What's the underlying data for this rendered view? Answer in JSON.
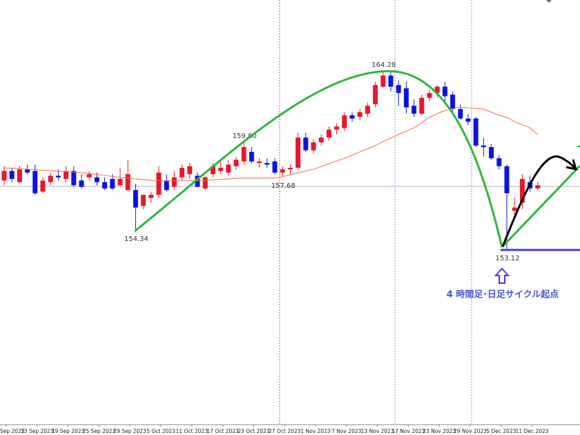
{
  "chart_data": {
    "type": "candlestick",
    "categories": [
      "Sep 2023",
      null,
      null,
      null,
      "13 Sep 2023",
      null,
      null,
      null,
      "19 Sep 2023",
      null,
      null,
      null,
      "25 Sep 2023",
      null,
      null,
      null,
      "29 Sep 2023",
      null,
      null,
      null,
      "5 Oct 2023",
      null,
      null,
      null,
      "11 Oct 2023",
      null,
      null,
      null,
      "17 Oct 2023",
      null,
      null,
      null,
      "23 Oct 2023",
      null,
      null,
      null,
      "27 Oct 2023",
      null,
      null,
      null,
      "1 Nov 2023",
      null,
      null,
      null,
      "7 Nov 2023",
      null,
      null,
      null,
      "13 Nov 2023",
      null,
      null,
      null,
      "17 Nov 2023",
      null,
      null,
      null,
      "23 Nov 2023",
      null,
      null,
      null,
      "29 Nov 2023",
      null,
      null,
      null,
      "5 Dec 2023",
      null,
      null,
      null,
      "11 Dec 2023",
      null
    ],
    "ohlc": [
      [
        157.4,
        158.3,
        157.1,
        158.0
      ],
      [
        158.0,
        158.2,
        157.3,
        157.5
      ],
      [
        157.3,
        158.3,
        157.2,
        158.1
      ],
      [
        158.1,
        158.4,
        157.8,
        157.9
      ],
      [
        158.0,
        158.4,
        156.5,
        156.6
      ],
      [
        156.7,
        157.6,
        156.6,
        157.4
      ],
      [
        157.3,
        157.9,
        157.1,
        157.7
      ],
      [
        157.7,
        158.1,
        157.4,
        157.6
      ],
      [
        157.5,
        158.3,
        157.3,
        158.0
      ],
      [
        158.0,
        158.3,
        157.0,
        157.1
      ],
      [
        157.4,
        157.8,
        156.9,
        157.0
      ],
      [
        157.6,
        158.0,
        157.4,
        157.8
      ],
      [
        157.6,
        157.9,
        157.1,
        157.3
      ],
      [
        157.3,
        157.6,
        156.8,
        156.9
      ],
      [
        157.5,
        157.8,
        156.8,
        156.9
      ],
      [
        157.1,
        158.2,
        157.0,
        157.5
      ],
      [
        156.8,
        158.7,
        156.7,
        157.8
      ],
      [
        156.8,
        157.2,
        154.34,
        155.7
      ],
      [
        155.8,
        156.5,
        155.6,
        156.5
      ],
      [
        156.3,
        156.7,
        156.0,
        156.5
      ],
      [
        156.5,
        158.3,
        156.3,
        157.9
      ],
      [
        157.4,
        157.8,
        156.7,
        156.8
      ],
      [
        157.0,
        158.0,
        156.8,
        157.6
      ],
      [
        157.6,
        158.4,
        157.4,
        158.2
      ],
      [
        157.8,
        158.5,
        157.5,
        158.3
      ],
      [
        157.7,
        157.9,
        157.0,
        157.0
      ],
      [
        156.9,
        157.7,
        156.8,
        157.6
      ],
      [
        157.8,
        158.5,
        157.6,
        158.3
      ],
      [
        158.0,
        158.6,
        157.8,
        158.2
      ],
      [
        157.9,
        158.7,
        157.7,
        158.4
      ],
      [
        158.3,
        158.9,
        158.1,
        158.7
      ],
      [
        158.6,
        159.8,
        158.4,
        159.5
      ],
      [
        159.2,
        159.5,
        158.5,
        158.6
      ],
      [
        158.5,
        158.8,
        158.2,
        158.6
      ],
      [
        158.5,
        158.8,
        158.2,
        158.4
      ],
      [
        158.6,
        158.8,
        157.8,
        157.9
      ],
      [
        157.9,
        158.3,
        157.68,
        158.1
      ],
      [
        158.1,
        158.4,
        157.8,
        158.2
      ],
      [
        158.2,
        160.4,
        158.1,
        160.1
      ],
      [
        160.1,
        160.4,
        159.2,
        159.3
      ],
      [
        159.3,
        160.0,
        159.1,
        159.8
      ],
      [
        159.8,
        160.3,
        159.6,
        160.1
      ],
      [
        160.1,
        160.8,
        159.9,
        160.6
      ],
      [
        160.6,
        161.0,
        160.3,
        160.8
      ],
      [
        160.7,
        161.7,
        160.5,
        161.5
      ],
      [
        161.5,
        161.7,
        161.1,
        161.3
      ],
      [
        161.4,
        161.9,
        161.2,
        161.7
      ],
      [
        161.6,
        162.3,
        161.4,
        162.1
      ],
      [
        162.2,
        163.6,
        162.0,
        163.4
      ],
      [
        163.3,
        164.28,
        163.2,
        164.0
      ],
      [
        164.0,
        164.2,
        163.0,
        163.3
      ],
      [
        163.4,
        163.7,
        162.1,
        162.9
      ],
      [
        163.2,
        163.6,
        161.6,
        162.0
      ],
      [
        162.1,
        162.5,
        161.4,
        161.6
      ],
      [
        161.6,
        162.8,
        161.5,
        162.6
      ],
      [
        162.6,
        163.1,
        162.4,
        162.9
      ],
      [
        162.9,
        163.4,
        162.6,
        163.3
      ],
      [
        163.3,
        163.6,
        162.4,
        162.7
      ],
      [
        162.8,
        163.0,
        161.7,
        161.9
      ],
      [
        161.9,
        162.2,
        161.2,
        161.3
      ],
      [
        161.3,
        161.6,
        160.9,
        161.1
      ],
      [
        161.3,
        161.4,
        159.5,
        159.6
      ],
      [
        159.6,
        160.1,
        158.9,
        159.5
      ],
      [
        159.5,
        159.7,
        158.7,
        158.8
      ],
      [
        158.8,
        159.0,
        158.1,
        158.3
      ],
      [
        158.3,
        158.4,
        153.12,
        156.6
      ],
      [
        155.5,
        156.3,
        155.0,
        155.7
      ],
      [
        156.0,
        157.8,
        155.6,
        157.5
      ],
      [
        157.3,
        157.7,
        156.7,
        156.9
      ],
      [
        156.9,
        157.3,
        156.8,
        157.1
      ]
    ],
    "up_color": "#e8172d",
    "down_color": "#0d14e0",
    "ma": {
      "color": "#f2703f",
      "values": [
        158.2,
        158.17,
        158.14,
        158.11,
        158.08,
        158.05,
        158.02,
        157.99,
        157.96,
        157.93,
        157.9,
        157.84,
        157.78,
        157.72,
        157.66,
        157.6,
        157.55,
        157.5,
        157.46,
        157.42,
        157.38,
        157.38,
        157.38,
        157.38,
        157.38,
        157.38,
        157.41,
        157.44,
        157.47,
        157.5,
        157.55,
        157.55,
        157.55,
        157.55,
        157.55,
        157.55,
        157.64,
        157.76,
        157.88,
        158.0,
        158.11,
        158.28,
        158.46,
        158.63,
        158.8,
        158.98,
        159.2,
        159.4,
        159.6,
        159.85,
        160.07,
        160.3,
        160.5,
        160.72,
        161.05,
        161.37,
        161.6,
        161.81,
        161.92,
        162.02,
        161.98,
        161.94,
        161.89,
        161.7,
        161.5,
        161.37,
        161.1,
        160.9,
        160.72,
        160.29
      ]
    },
    "price_labels": [
      154.34,
      {
        "value": 159.8,
        "label": "159.80"
      },
      164.28,
      157.68,
      153.12
    ],
    "hline": 157.03,
    "ylim": [
      142.05,
      168.75
    ],
    "annotation": "4 時間足･日足サイクル起点"
  }
}
